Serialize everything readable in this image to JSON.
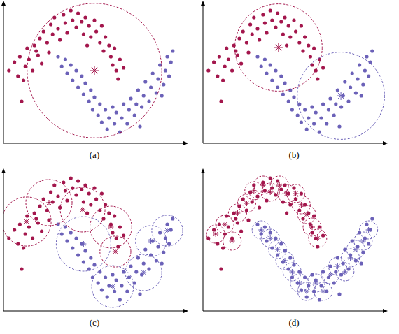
{
  "chart_data": [
    {
      "type": "scatter",
      "title": "(a)",
      "xlim": [
        0,
        100
      ],
      "ylim": [
        0,
        100
      ],
      "tick_labels": false,
      "series": [
        {
          "color": "#a3164c",
          "x": [
            3,
            6,
            8,
            9,
            12,
            11,
            14,
            16,
            13,
            17,
            19,
            20,
            22,
            21,
            24,
            26,
            27,
            28,
            30,
            31,
            33,
            34,
            35,
            37,
            38,
            40,
            41,
            43,
            44,
            45,
            47,
            48,
            50,
            51,
            53,
            54,
            55,
            56,
            58,
            59,
            60,
            61,
            62,
            64,
            63,
            66,
            10,
            18,
            25,
            46
          ],
          "values": [
            52,
            58,
            48,
            62,
            55,
            45,
            60,
            52,
            68,
            70,
            63,
            75,
            80,
            57,
            72,
            85,
            78,
            90,
            82,
            74,
            92,
            86,
            79,
            95,
            88,
            83,
            93,
            87,
            78,
            90,
            84,
            76,
            88,
            80,
            72,
            84,
            66,
            76,
            70,
            62,
            56,
            68,
            52,
            60,
            46,
            54,
            30,
            66,
            65,
            70
          ]
        },
        {
          "color": "#6b61b8",
          "x": [
            30,
            32,
            34,
            35,
            37,
            38,
            40,
            41,
            43,
            44,
            45,
            47,
            48,
            49,
            50,
            52,
            53,
            54,
            56,
            57,
            58,
            60,
            61,
            62,
            64,
            65,
            66,
            68,
            69,
            70,
            72,
            73,
            74,
            76,
            77,
            78,
            80,
            81,
            82,
            84,
            85,
            86,
            88,
            89,
            90,
            91,
            92,
            93,
            87,
            75
          ],
          "values": [
            62,
            55,
            60,
            50,
            56,
            45,
            52,
            40,
            48,
            35,
            43,
            30,
            38,
            24,
            33,
            20,
            28,
            15,
            24,
            10,
            18,
            26,
            14,
            22,
            8,
            18,
            28,
            14,
            24,
            32,
            20,
            28,
            38,
            26,
            34,
            44,
            30,
            40,
            50,
            36,
            46,
            56,
            42,
            52,
            62,
            48,
            58,
            66,
            34,
            12
          ]
        }
      ],
      "circles": [
        {
          "x": 50,
          "y": 52,
          "r": 37,
          "color": "#a3164c"
        }
      ]
    },
    {
      "type": "scatter",
      "title": "(b)",
      "xlim": [
        0,
        100
      ],
      "ylim": [
        0,
        100
      ],
      "tick_labels": false,
      "series": [
        {
          "color": "#a3164c",
          "x": [
            3,
            6,
            8,
            9,
            12,
            11,
            14,
            16,
            13,
            17,
            19,
            20,
            22,
            21,
            24,
            26,
            27,
            28,
            30,
            31,
            33,
            34,
            35,
            37,
            38,
            40,
            41,
            43,
            44,
            45,
            47,
            48,
            50,
            51,
            53,
            54,
            55,
            56,
            58,
            59,
            60,
            61,
            62,
            64,
            63,
            66,
            10,
            18,
            25,
            46
          ],
          "values": [
            52,
            58,
            48,
            62,
            55,
            45,
            60,
            52,
            68,
            70,
            63,
            75,
            80,
            57,
            72,
            85,
            78,
            90,
            82,
            74,
            92,
            86,
            79,
            95,
            88,
            83,
            93,
            87,
            78,
            90,
            84,
            76,
            88,
            80,
            72,
            84,
            66,
            76,
            70,
            62,
            56,
            68,
            52,
            60,
            46,
            54,
            30,
            66,
            65,
            70
          ]
        },
        {
          "color": "#6b61b8",
          "x": [
            30,
            32,
            34,
            35,
            37,
            38,
            40,
            41,
            43,
            44,
            45,
            47,
            48,
            49,
            50,
            52,
            53,
            54,
            56,
            57,
            58,
            60,
            61,
            62,
            64,
            65,
            66,
            68,
            69,
            70,
            72,
            73,
            74,
            76,
            77,
            78,
            80,
            81,
            82,
            84,
            85,
            86,
            88,
            89,
            90,
            91,
            92,
            93,
            87,
            75
          ],
          "values": [
            62,
            55,
            60,
            50,
            56,
            45,
            52,
            40,
            48,
            35,
            43,
            30,
            38,
            24,
            33,
            20,
            28,
            15,
            24,
            10,
            18,
            26,
            14,
            22,
            8,
            18,
            28,
            14,
            24,
            32,
            20,
            28,
            38,
            26,
            34,
            44,
            30,
            40,
            50,
            36,
            46,
            56,
            42,
            52,
            62,
            48,
            58,
            66,
            34,
            12
          ]
        }
      ],
      "circles": [
        {
          "x": 41.5,
          "y": 68.5,
          "r": 24,
          "color": "#a3164c"
        },
        {
          "x": 75.8,
          "y": 34,
          "r": 24,
          "color": "#6b61b8"
        }
      ]
    },
    {
      "type": "scatter",
      "title": "(c)",
      "xlim": [
        0,
        100
      ],
      "ylim": [
        0,
        100
      ],
      "tick_labels": false,
      "series": [
        {
          "color": "#a3164c",
          "x": [
            3,
            6,
            8,
            9,
            12,
            11,
            14,
            16,
            13,
            17,
            19,
            20,
            22,
            21,
            24,
            26,
            27,
            28,
            30,
            31,
            33,
            34,
            35,
            37,
            38,
            40,
            41,
            43,
            44,
            45,
            47,
            48,
            50,
            51,
            53,
            54,
            55,
            56,
            58,
            59,
            60,
            61,
            62,
            64,
            63,
            66,
            10,
            18,
            25,
            46
          ],
          "values": [
            52,
            58,
            48,
            62,
            55,
            45,
            60,
            52,
            68,
            70,
            63,
            75,
            80,
            57,
            72,
            85,
            78,
            90,
            82,
            74,
            92,
            86,
            79,
            95,
            88,
            83,
            93,
            87,
            78,
            90,
            84,
            76,
            88,
            80,
            72,
            84,
            66,
            76,
            70,
            62,
            56,
            68,
            52,
            60,
            46,
            54,
            30,
            66,
            65,
            70
          ]
        },
        {
          "color": "#6b61b8",
          "x": [
            30,
            32,
            34,
            35,
            37,
            38,
            40,
            41,
            43,
            44,
            45,
            47,
            48,
            49,
            50,
            52,
            53,
            54,
            56,
            57,
            58,
            60,
            61,
            62,
            64,
            65,
            66,
            68,
            69,
            70,
            72,
            73,
            74,
            76,
            77,
            78,
            80,
            81,
            82,
            84,
            85,
            86,
            88,
            89,
            90,
            91,
            92,
            93,
            87,
            75
          ],
          "values": [
            62,
            55,
            60,
            50,
            56,
            45,
            52,
            40,
            48,
            35,
            43,
            30,
            38,
            24,
            33,
            20,
            28,
            15,
            24,
            10,
            18,
            26,
            14,
            22,
            8,
            18,
            28,
            14,
            24,
            32,
            20,
            28,
            38,
            26,
            34,
            44,
            30,
            40,
            50,
            36,
            46,
            56,
            42,
            52,
            62,
            48,
            58,
            66,
            34,
            12
          ]
        }
      ],
      "circles": [
        {
          "x": 12.7,
          "y": 64,
          "r": 13.5,
          "color": "#a3164c"
        },
        {
          "x": 25,
          "y": 77.5,
          "r": 12.7,
          "color": "#a3164c"
        },
        {
          "x": 43.5,
          "y": 72.5,
          "r": 12.3,
          "color": "#a3164c"
        },
        {
          "x": 59,
          "y": 60,
          "r": 11.5,
          "color": "#a3164c"
        },
        {
          "x": 61.5,
          "y": 42.5,
          "r": 8.5,
          "color": "#a3164c"
        },
        {
          "x": 44,
          "y": 48,
          "r": 15,
          "color": "#6b61b8"
        },
        {
          "x": 60,
          "y": 17.5,
          "r": 11.5,
          "color": "#6b61b8"
        },
        {
          "x": 77,
          "y": 27.5,
          "r": 10,
          "color": "#6b61b8"
        },
        {
          "x": 81,
          "y": 50,
          "r": 8.5,
          "color": "#6b61b8"
        },
        {
          "x": 90,
          "y": 57.5,
          "r": 8.5,
          "color": "#6b61b8"
        }
      ]
    },
    {
      "type": "scatter",
      "title": "(d)",
      "xlim": [
        0,
        100
      ],
      "ylim": [
        0,
        100
      ],
      "tick_labels": false,
      "series": [
        {
          "color": "#a3164c",
          "x": [
            3,
            6,
            8,
            9,
            12,
            11,
            14,
            16,
            13,
            17,
            19,
            20,
            22,
            21,
            24,
            26,
            27,
            28,
            30,
            31,
            33,
            34,
            35,
            37,
            38,
            40,
            41,
            43,
            44,
            45,
            47,
            48,
            50,
            51,
            53,
            54,
            55,
            56,
            58,
            59,
            60,
            61,
            62,
            64,
            63,
            66,
            10,
            18,
            25,
            46
          ],
          "values": [
            52,
            58,
            48,
            62,
            55,
            45,
            60,
            52,
            68,
            70,
            63,
            75,
            80,
            57,
            72,
            85,
            78,
            90,
            82,
            74,
            92,
            86,
            79,
            95,
            88,
            83,
            93,
            87,
            78,
            90,
            84,
            76,
            88,
            80,
            72,
            84,
            66,
            76,
            70,
            62,
            56,
            68,
            52,
            60,
            46,
            54,
            30,
            66,
            65,
            70
          ]
        },
        {
          "color": "#6b61b8",
          "x": [
            30,
            32,
            34,
            35,
            37,
            38,
            40,
            41,
            43,
            44,
            45,
            47,
            48,
            49,
            50,
            52,
            53,
            54,
            56,
            57,
            58,
            60,
            61,
            62,
            64,
            65,
            66,
            68,
            69,
            70,
            72,
            73,
            74,
            76,
            77,
            78,
            80,
            81,
            82,
            84,
            85,
            86,
            88,
            89,
            90,
            91,
            92,
            93,
            87,
            75
          ],
          "values": [
            62,
            55,
            60,
            50,
            56,
            45,
            52,
            40,
            48,
            35,
            43,
            30,
            38,
            24,
            33,
            20,
            28,
            15,
            24,
            10,
            18,
            26,
            14,
            22,
            8,
            18,
            28,
            14,
            24,
            32,
            20,
            28,
            38,
            26,
            34,
            44,
            30,
            40,
            50,
            36,
            46,
            56,
            42,
            52,
            62,
            48,
            58,
            66,
            34,
            12
          ]
        }
      ],
      "circles": [
        {
          "x": 7,
          "y": 55,
          "r": 5,
          "color": "#a3164c"
        },
        {
          "x": 12,
          "y": 62,
          "r": 5,
          "color": "#a3164c"
        },
        {
          "x": 16,
          "y": 50,
          "r": 5,
          "color": "#a3164c"
        },
        {
          "x": 19,
          "y": 70,
          "r": 5,
          "color": "#a3164c"
        },
        {
          "x": 24,
          "y": 77,
          "r": 5,
          "color": "#a3164c"
        },
        {
          "x": 28,
          "y": 86,
          "r": 5,
          "color": "#a3164c"
        },
        {
          "x": 33,
          "y": 90,
          "r": 5,
          "color": "#a3164c"
        },
        {
          "x": 37,
          "y": 85,
          "r": 5,
          "color": "#a3164c"
        },
        {
          "x": 42,
          "y": 90,
          "r": 5,
          "color": "#a3164c"
        },
        {
          "x": 46,
          "y": 84,
          "r": 5,
          "color": "#a3164c"
        },
        {
          "x": 51,
          "y": 84,
          "r": 5,
          "color": "#a3164c"
        },
        {
          "x": 54,
          "y": 76,
          "r": 5,
          "color": "#a3164c"
        },
        {
          "x": 57,
          "y": 69,
          "r": 5,
          "color": "#a3164c"
        },
        {
          "x": 60,
          "y": 60,
          "r": 5,
          "color": "#a3164c"
        },
        {
          "x": 63,
          "y": 52,
          "r": 5,
          "color": "#a3164c"
        },
        {
          "x": 32,
          "y": 58,
          "r": 5,
          "color": "#6b61b8"
        },
        {
          "x": 37,
          "y": 52,
          "r": 5,
          "color": "#6b61b8"
        },
        {
          "x": 41,
          "y": 44,
          "r": 5,
          "color": "#6b61b8"
        },
        {
          "x": 45,
          "y": 36,
          "r": 5,
          "color": "#6b61b8"
        },
        {
          "x": 49,
          "y": 28,
          "r": 5,
          "color": "#6b61b8"
        },
        {
          "x": 53,
          "y": 20,
          "r": 5,
          "color": "#6b61b8"
        },
        {
          "x": 57,
          "y": 14,
          "r": 5,
          "color": "#6b61b8"
        },
        {
          "x": 62,
          "y": 20,
          "r": 5,
          "color": "#6b61b8"
        },
        {
          "x": 66,
          "y": 14,
          "r": 5,
          "color": "#6b61b8"
        },
        {
          "x": 70,
          "y": 26,
          "r": 5,
          "color": "#6b61b8"
        },
        {
          "x": 74,
          "y": 32,
          "r": 5,
          "color": "#6b61b8"
        },
        {
          "x": 78,
          "y": 28,
          "r": 5,
          "color": "#6b61b8"
        },
        {
          "x": 81,
          "y": 38,
          "r": 5,
          "color": "#6b61b8"
        },
        {
          "x": 84,
          "y": 44,
          "r": 5,
          "color": "#6b61b8"
        },
        {
          "x": 88,
          "y": 50,
          "r": 5,
          "color": "#6b61b8"
        },
        {
          "x": 91,
          "y": 58,
          "r": 5,
          "color": "#6b61b8"
        }
      ]
    }
  ]
}
